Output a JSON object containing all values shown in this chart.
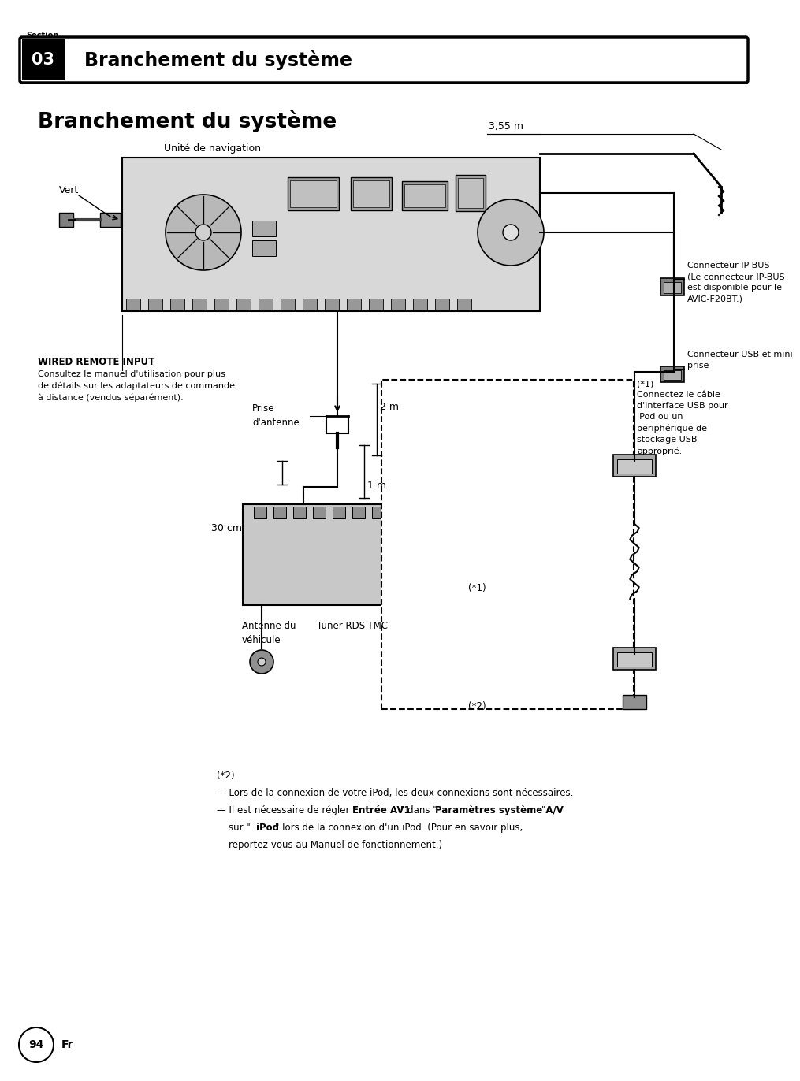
{
  "bg_color": "#ffffff",
  "section_label": "Section",
  "section_number": "03",
  "section_title": "Branchement du système",
  "page_title": "Branchement du système",
  "page_number": "94",
  "page_lang": "Fr",
  "annotation_35m": "3,55 m",
  "annotation_vert": "Vert",
  "annotation_unite": "Unité de navigation",
  "annotation_wired": "WIRED REMOTE INPUT",
  "annotation_wired2": "Consultez le manuel d'utilisation pour plus\nde détails sur les adaptateurs de commande\nà distance (vendus séparément).",
  "annotation_prise": "Prise\nd'antenne",
  "annotation_2m": "2 m",
  "annotation_1m": "1 m",
  "annotation_30cm": "30 cm",
  "annotation_ipbus": "Connecteur IP-BUS\n(Le connecteur IP-BUS\nest disponible pour le\nAVIC-F20BT.)",
  "annotation_usb": "Connecteur USB et mini\nprise",
  "annotation_star1a": "(*1)\nConnectez le câble\nd'interface USB pour\niPod ou un\npériphérique de\nstockage USB\napproprié.",
  "annotation_star1b": "(*1)",
  "annotation_star2_label": "(*2)",
  "annotation_antenne": "Antenne du\nvéhicule",
  "annotation_tuner": "Tuner RDS-TMC",
  "footnote_star2": "(*2)",
  "footnote_line1": "— Lors de la connexion de votre iPod, les deux connexions sont nécessaires.",
  "footnote_line2_pre": "— Il est nécessaire de régler \"",
  "footnote_line2_bold1": "Entrée AV1",
  "footnote_line2_mid": "\" dans \"",
  "footnote_line2_bold2": "Paramètres système A/V",
  "footnote_line2_end": "\"",
  "footnote_line3_pre": "    sur \"",
  "footnote_line3_bold": "iPod",
  "footnote_line3_end": "\" lors de la connexion d'un iPod. (Pour en savoir plus,",
  "footnote_line4": "    reportez-vous au Manuel de fonctionnement.)"
}
